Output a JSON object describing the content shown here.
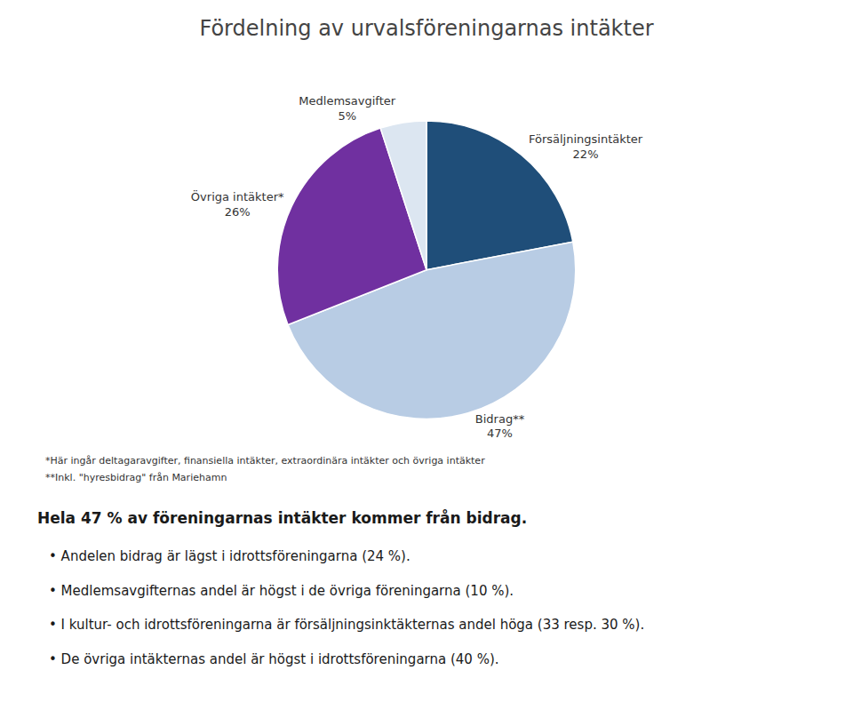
{
  "chart_data": {
    "type": "pie",
    "title": "Fördelning av urvalsföreningarnas intäkter",
    "categories": [
      "Försäljningsintäkter",
      "Bidrag**",
      "Övriga intäkter*",
      "Medlemsavgifter"
    ],
    "values": [
      22,
      47,
      26,
      5
    ],
    "value_labels": [
      "22%",
      "47%",
      "26%",
      "5%"
    ],
    "data_labels": true,
    "colors": [
      "#1f4e79",
      "#b8cce4",
      "#7030a0",
      "#dce6f1"
    ],
    "footnotes": [
      "*Här ingår deltagaravgifter, finansiella intäkter, extraordinära intäkter och övriga intäkter",
      "**Inkl. \"hyresbidrag\" från Mariehamn"
    ],
    "summary": "Hela 47 % av föreningarnas intäkter kommer från bidrag.",
    "bullets": [
      "• Andelen bidrag är lägst i idrottsföreningarna (24 %).",
      "• Medlemsavgifternas andel är högst i de övriga föreningarna (10 %).",
      "• I kultur- och idrottsföreningarna är försäljningsinktäkternas andel höga (33 resp. 30 %).",
      "• De övriga intäkternas andel är högst i idrottsföreningarna (40 %)."
    ]
  }
}
